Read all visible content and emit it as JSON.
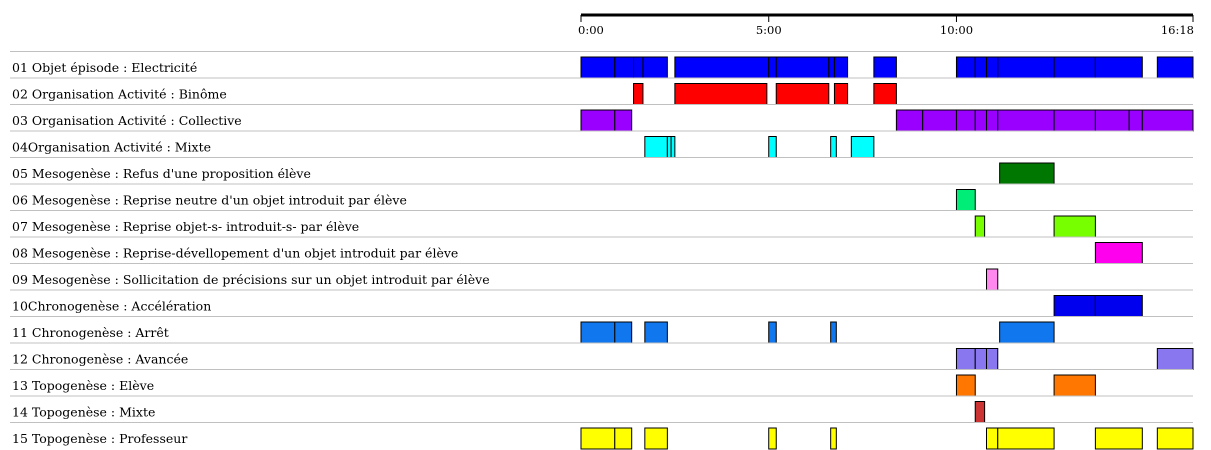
{
  "chart_data": {
    "type": "timeline",
    "x_unit": "minutes",
    "x_domain": [
      0,
      16.3
    ],
    "ticks": [
      {
        "value": 0,
        "label": "0:00"
      },
      {
        "value": 5,
        "label": "5:00"
      },
      {
        "value": 10,
        "label": "10:00"
      },
      {
        "value": 16.3,
        "label": "16:18"
      }
    ],
    "rows": [
      {
        "label": "01 Objet épisode : Electricité",
        "color": "#0000ff",
        "segments": [
          [
            0.0,
            0.9
          ],
          [
            0.9,
            1.4
          ],
          [
            1.4,
            1.65
          ],
          [
            1.65,
            2.3
          ],
          [
            2.5,
            5.0
          ],
          [
            5.0,
            5.2
          ],
          [
            5.2,
            6.6
          ],
          [
            6.6,
            6.75
          ],
          [
            6.75,
            7.1
          ],
          [
            7.8,
            8.4
          ],
          [
            10.0,
            10.5
          ],
          [
            10.5,
            10.8
          ],
          [
            10.8,
            11.1
          ],
          [
            11.1,
            12.6
          ],
          [
            12.6,
            13.7
          ],
          [
            13.7,
            14.95
          ],
          [
            15.35,
            16.3
          ]
        ]
      },
      {
        "label": "02 Organisation Activité : Binôme",
        "color": "#ff0000",
        "segments": [
          [
            1.4,
            1.65
          ],
          [
            2.5,
            4.95
          ],
          [
            5.2,
            6.6
          ],
          [
            6.75,
            7.1
          ],
          [
            7.8,
            8.4
          ]
        ]
      },
      {
        "label": "03 Organisation Activité : Collective",
        "color": "#9900ff",
        "segments": [
          [
            0.0,
            0.9
          ],
          [
            0.9,
            1.35
          ],
          [
            8.4,
            9.1
          ],
          [
            9.1,
            10.0
          ],
          [
            10.0,
            10.5
          ],
          [
            10.5,
            10.8
          ],
          [
            10.8,
            11.1
          ],
          [
            11.1,
            12.6
          ],
          [
            12.6,
            13.7
          ],
          [
            13.7,
            14.6
          ],
          [
            14.6,
            14.95
          ],
          [
            14.95,
            16.3
          ]
        ]
      },
      {
        "label": "04Organisation Activité : Mixte",
        "color": "#00ffff",
        "segments": [
          [
            1.7,
            2.3
          ],
          [
            2.3,
            2.4
          ],
          [
            2.4,
            2.5
          ],
          [
            5.0,
            5.2
          ],
          [
            6.65,
            6.8
          ],
          [
            7.2,
            7.8
          ]
        ]
      },
      {
        "label": "05 Mesogenèse : Refus d'une proposition élève",
        "color": "#007700",
        "segments": [
          [
            11.15,
            12.6
          ]
        ]
      },
      {
        "label": "06 Mesogenèse : Reprise neutre d'un objet introduit par élève",
        "color": "#00ee77",
        "segments": [
          [
            10.0,
            10.5
          ]
        ]
      },
      {
        "label": "07 Mesogenèse : Reprise objet-s- introduit-s- par élève",
        "color": "#77ff00",
        "segments": [
          [
            10.5,
            10.75
          ],
          [
            12.6,
            13.7
          ]
        ]
      },
      {
        "label": "08 Mesogenèse : Reprise-dévellopement d'un objet introduit par élève",
        "color": "#ff00ee",
        "segments": [
          [
            13.7,
            14.95
          ]
        ]
      },
      {
        "label": "09 Mesogenèse : Sollicitation de précisions sur un objet introduit par élève",
        "color": "#ff88ee",
        "segments": [
          [
            10.8,
            11.1
          ]
        ]
      },
      {
        "label": "10Chronogenèse : Accélération",
        "color": "#0000ee",
        "segments": [
          [
            12.6,
            13.7
          ],
          [
            13.7,
            14.95
          ]
        ]
      },
      {
        "label": "11 Chronogenèse : Arrêt",
        "color": "#1177ee",
        "segments": [
          [
            0.0,
            0.9
          ],
          [
            0.9,
            1.35
          ],
          [
            1.7,
            2.3
          ],
          [
            5.0,
            5.2
          ],
          [
            6.65,
            6.8
          ],
          [
            11.15,
            12.6
          ]
        ]
      },
      {
        "label": "12 Chronogenèse : Avancée",
        "color": "#8877ee",
        "segments": [
          [
            10.0,
            10.5
          ],
          [
            10.5,
            10.8
          ],
          [
            10.8,
            11.1
          ],
          [
            15.35,
            16.3
          ]
        ]
      },
      {
        "label": "13 Topogenèse : Elève",
        "color": "#ff7700",
        "segments": [
          [
            10.0,
            10.5
          ],
          [
            12.6,
            13.7
          ]
        ]
      },
      {
        "label": "14 Topogenèse : Mixte",
        "color": "#cc3333",
        "segments": [
          [
            10.5,
            10.75
          ]
        ]
      },
      {
        "label": "15 Topogenèse : Professeur",
        "color": "#ffff00",
        "segments": [
          [
            0.0,
            0.9
          ],
          [
            0.9,
            1.35
          ],
          [
            1.7,
            2.3
          ],
          [
            5.0,
            5.2
          ],
          [
            6.65,
            6.8
          ],
          [
            10.8,
            11.1
          ],
          [
            11.1,
            12.6
          ],
          [
            13.7,
            14.95
          ],
          [
            15.35,
            16.3
          ]
        ]
      }
    ]
  }
}
